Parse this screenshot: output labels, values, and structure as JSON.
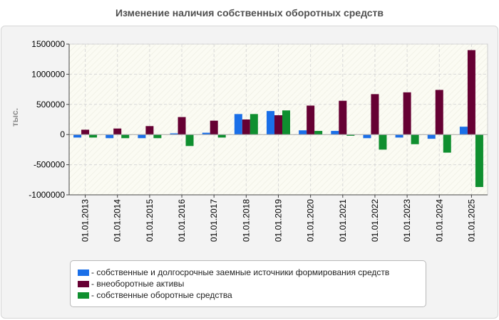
{
  "chart_data": {
    "type": "bar",
    "title": "Изменение наличия собственных оборотных средств",
    "ylabel": "тыс.",
    "xlabel": "",
    "ylim": [
      -1000000,
      1500000
    ],
    "yticks": [
      1500000,
      1000000,
      500000,
      0,
      -500000,
      -1000000
    ],
    "ytick_labels": [
      "1500000",
      "1000000",
      "500000",
      "0",
      "-500000",
      "-1000000"
    ],
    "grid": true,
    "legend_position": "bottom",
    "categories": [
      "01.01.2013",
      "01.01.2014",
      "01.01.2015",
      "01.01.2016",
      "01.01.2017",
      "01.01.2018",
      "01.01.2019",
      "01.01.2020",
      "01.01.2021",
      "01.01.2022",
      "01.01.2023",
      "01.01.2024",
      "01.01.2025"
    ],
    "series": [
      {
        "name": "- собственные и долгосрочные заемные источники формирования средств",
        "color": "#1a6fe8",
        "values": [
          -50000,
          -60000,
          -60000,
          20000,
          30000,
          340000,
          390000,
          70000,
          60000,
          -60000,
          -50000,
          -70000,
          130000
        ]
      },
      {
        "name": "- внеоборотные активы",
        "color": "#660033",
        "values": [
          80000,
          100000,
          140000,
          290000,
          230000,
          250000,
          320000,
          480000,
          560000,
          670000,
          700000,
          740000,
          1400000
        ]
      },
      {
        "name": "- собственные оборотные средства",
        "color": "#0f8f2f",
        "values": [
          -50000,
          -60000,
          -60000,
          -190000,
          -50000,
          340000,
          400000,
          60000,
          -20000,
          -250000,
          -160000,
          -300000,
          -870000
        ]
      }
    ]
  }
}
